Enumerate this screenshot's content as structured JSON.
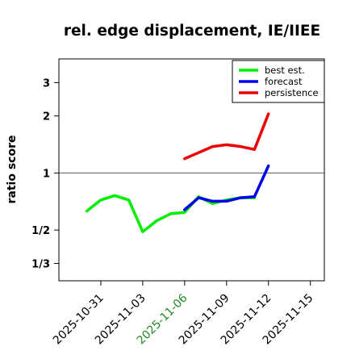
{
  "chart_data": {
    "type": "line",
    "title": "rel. edge displacement, IE/IIEE",
    "xlabel": "",
    "ylabel": "ratio score",
    "y_scale": "log",
    "ylim": [
      0.27,
      4.0
    ],
    "xlim": [
      "2025-10-28",
      "2025-11-16"
    ],
    "y_ticks": [
      {
        "value": 0.3333,
        "label": "1/3"
      },
      {
        "value": 0.5,
        "label": "1/2"
      },
      {
        "value": 1,
        "label": "1"
      },
      {
        "value": 2,
        "label": "2"
      },
      {
        "value": 3,
        "label": "3"
      }
    ],
    "x_ticks": [
      {
        "date": "2025-10-31",
        "label": "2025-10-31",
        "color": "#000000"
      },
      {
        "date": "2025-11-03",
        "label": "2025-11-03",
        "color": "#000000"
      },
      {
        "date": "2025-11-06",
        "label": "2025-11-06",
        "color": "#228b22"
      },
      {
        "date": "2025-11-09",
        "label": "2025-11-09",
        "color": "#000000"
      },
      {
        "date": "2025-11-12",
        "label": "2025-11-12",
        "color": "#000000"
      },
      {
        "date": "2025-11-15",
        "label": "2025-11-15",
        "color": "#000000"
      }
    ],
    "reference_line": 1,
    "legend_position": "top-right",
    "series": [
      {
        "name": "best est.",
        "color": "#00ee00",
        "x": [
          "2025-10-30",
          "2025-10-31",
          "2025-11-01",
          "2025-11-02",
          "2025-11-03",
          "2025-11-04",
          "2025-11-05",
          "2025-11-06",
          "2025-11-07",
          "2025-11-08",
          "2025-11-09",
          "2025-11-10",
          "2025-11-11"
        ],
        "y": [
          0.63,
          0.72,
          0.76,
          0.72,
          0.49,
          0.56,
          0.61,
          0.62,
          0.75,
          0.69,
          0.72,
          0.74,
          0.74
        ]
      },
      {
        "name": "forecast",
        "color": "#0000ee",
        "x": [
          "2025-11-06",
          "2025-11-07",
          "2025-11-08",
          "2025-11-09",
          "2025-11-10",
          "2025-11-11",
          "2025-11-12"
        ],
        "y": [
          0.64,
          0.74,
          0.71,
          0.71,
          0.74,
          0.75,
          1.09
        ]
      },
      {
        "name": "persistence",
        "color": "#ee0000",
        "x": [
          "2025-11-06",
          "2025-11-07",
          "2025-11-08",
          "2025-11-09",
          "2025-11-10",
          "2025-11-11",
          "2025-11-12"
        ],
        "y": [
          1.19,
          1.28,
          1.38,
          1.41,
          1.38,
          1.33,
          2.05
        ]
      }
    ]
  }
}
